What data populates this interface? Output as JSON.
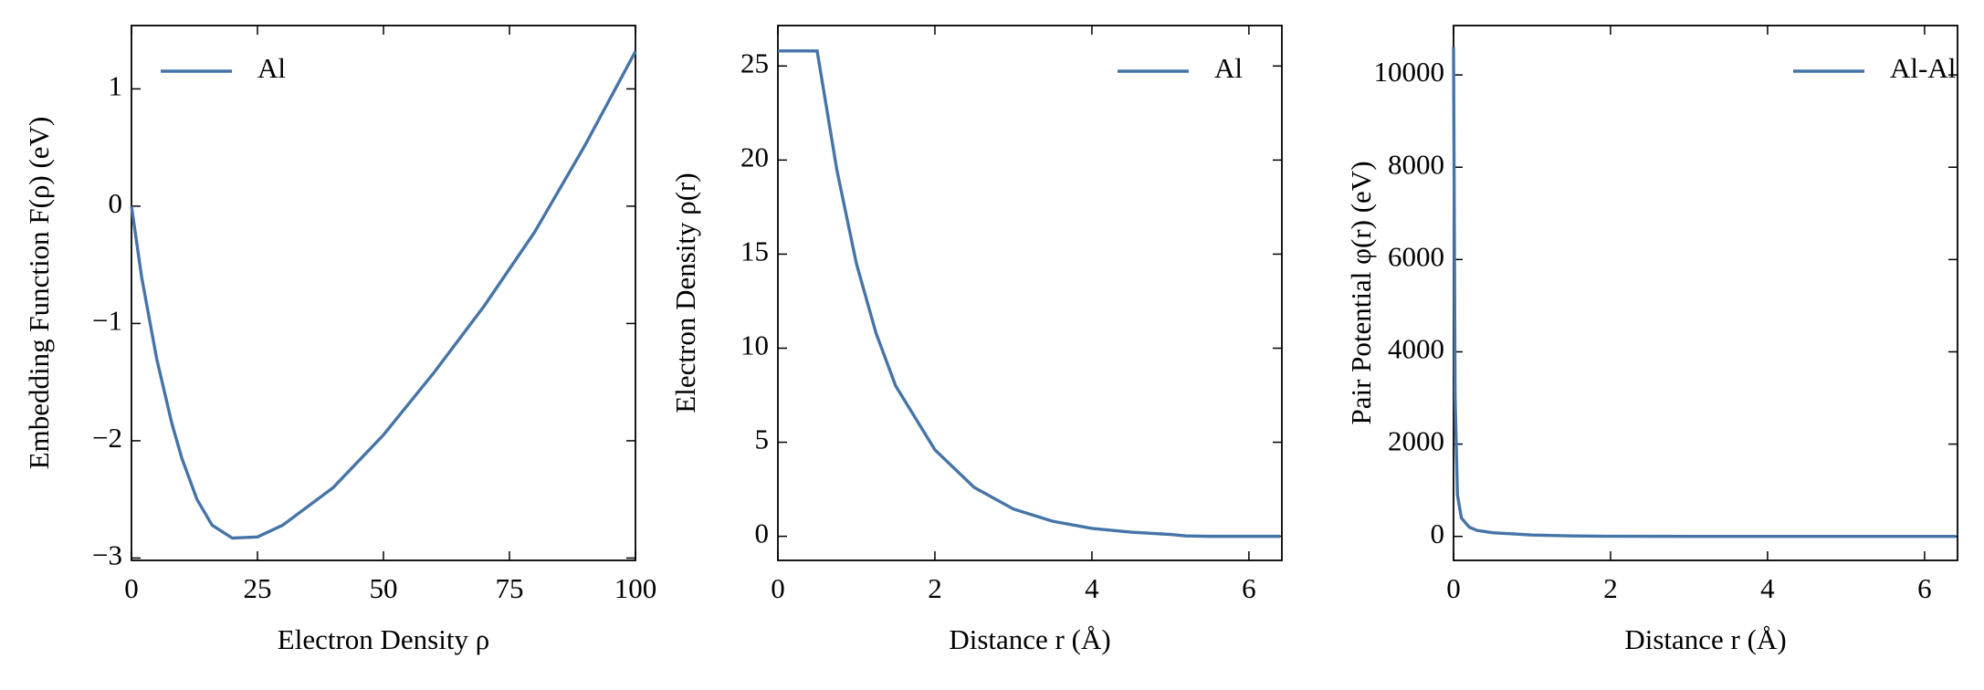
{
  "chart_data": [
    {
      "type": "line",
      "xlabel": "Electron Density ρ",
      "ylabel": "Embedding Function F(ρ) (eV)",
      "x": [
        0,
        2,
        5,
        8,
        10,
        13,
        16,
        20,
        25,
        30,
        40,
        50,
        60,
        70,
        80,
        90,
        100
      ],
      "series": [
        {
          "name": "Al",
          "color": "#4674a8",
          "values": [
            0,
            -0.6,
            -1.3,
            -1.85,
            -2.15,
            -2.5,
            -2.72,
            -2.83,
            -2.82,
            -2.72,
            -2.4,
            -1.95,
            -1.42,
            -0.85,
            -0.22,
            0.52,
            1.32
          ]
        }
      ],
      "xlim": [
        0,
        100
      ],
      "ylim": [
        -3.02,
        1.54
      ],
      "xticks": [
        0,
        25,
        50,
        75,
        100
      ],
      "yticks": [
        {
          "value": -3,
          "label": "−3"
        },
        {
          "value": -2,
          "label": "−2"
        },
        {
          "value": -1,
          "label": "−1"
        },
        0,
        1
      ],
      "legend": "upper left"
    },
    {
      "type": "line",
      "xlabel": "Distance r (Å)",
      "ylabel": "Electron Density ρ(r)",
      "x": [
        0,
        0.5,
        0.75,
        1,
        1.25,
        1.5,
        2,
        2.5,
        3,
        3.5,
        4,
        4.5,
        5,
        5.2,
        5.5,
        6.4
      ],
      "series": [
        {
          "name": "Al",
          "color": "#4674a8",
          "values": [
            25.8,
            25.8,
            19.5,
            14.5,
            10.8,
            8.0,
            4.6,
            2.6,
            1.45,
            0.8,
            0.42,
            0.22,
            0.1,
            0.02,
            0,
            0
          ]
        }
      ],
      "xlim": [
        0,
        6.42
      ],
      "ylim": [
        -1.28,
        27.15
      ],
      "xticks": [
        0,
        2,
        4,
        6
      ],
      "yticks": [
        0,
        5,
        10,
        15,
        20,
        25
      ],
      "legend": "upper right"
    },
    {
      "type": "line",
      "xlabel": "Distance r (Å)",
      "ylabel": "Pair Potential φ(r) (eV)",
      "x": [
        0,
        0.02,
        0.05,
        0.1,
        0.2,
        0.3,
        0.5,
        1,
        1.5,
        2,
        3,
        6.4
      ],
      "series": [
        {
          "name": "Al-Al",
          "color": "#4674a8",
          "values": [
            10600,
            3000,
            900,
            400,
            200,
            130,
            80,
            30,
            10,
            3,
            0,
            0
          ]
        }
      ],
      "xlim": [
        0,
        6.42
      ],
      "ylim": [
        -520,
        11070
      ],
      "xticks": [
        0,
        2,
        4,
        6
      ],
      "yticks": [
        0,
        2000,
        4000,
        6000,
        8000,
        10000
      ],
      "legend": "upper right"
    }
  ]
}
